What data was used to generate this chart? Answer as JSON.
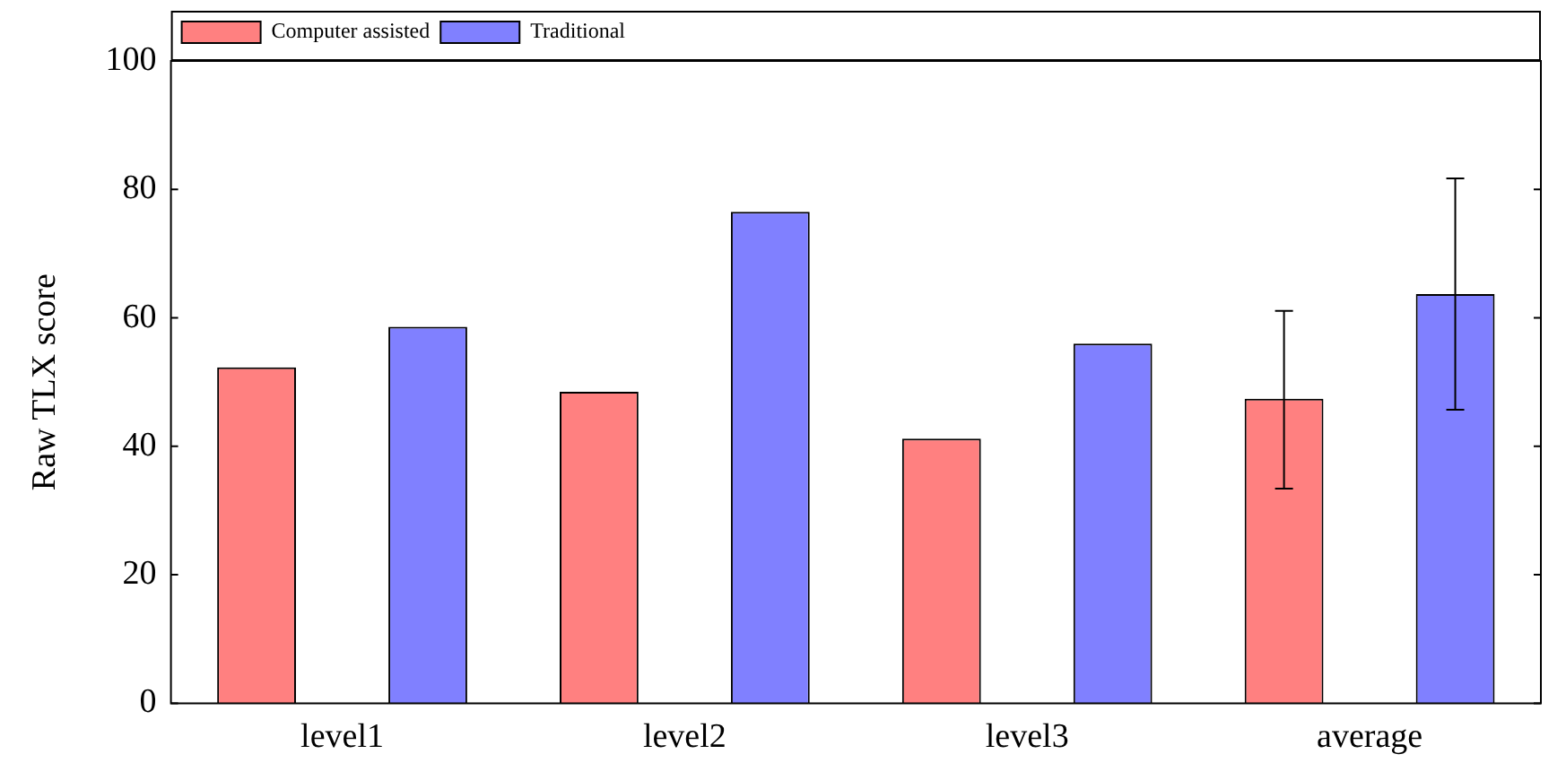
{
  "chart_data": {
    "type": "bar",
    "ylabel": "Raw TLX score",
    "categories": [
      "level1",
      "level2",
      "level3",
      "average"
    ],
    "series": [
      {
        "name": "Computer assisted",
        "color": "#ff8080",
        "values": [
          52.3,
          48.5,
          41.2,
          47.4
        ],
        "errors": [
          null,
          null,
          null,
          [
            33.4,
            61.1
          ]
        ]
      },
      {
        "name": "Traditional",
        "color": "#8080ff",
        "values": [
          58.6,
          76.5,
          56.0,
          63.7
        ],
        "errors": [
          null,
          null,
          null,
          [
            45.7,
            81.7
          ]
        ]
      }
    ],
    "ylim": [
      0,
      100
    ],
    "yticks": [
      0,
      20,
      40,
      60,
      80,
      100
    ],
    "grid": false,
    "legend": "top left"
  }
}
